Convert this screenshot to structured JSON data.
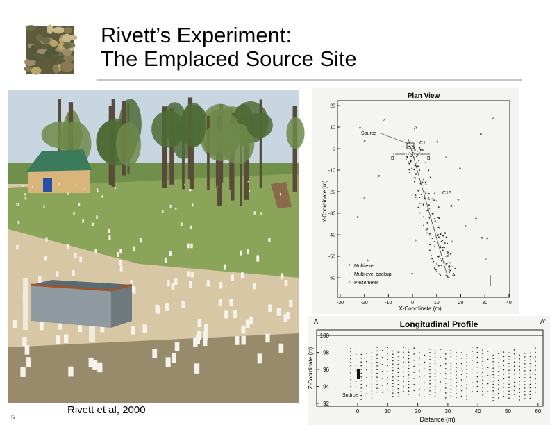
{
  "header": {
    "title_lines": [
      "Rivett’s Experiment:",
      "The Emplaced Source Site"
    ]
  },
  "photo": {
    "caption": "Rivett et al, 2000"
  },
  "page_number": "5",
  "plan_view": {
    "title": "Plan View",
    "x_label": "X-Coordinate (m)",
    "y_label": "Y-Coordinate (m)",
    "x_ticks": [
      "-30",
      "-20",
      "-10",
      "0",
      "10",
      "20",
      "30",
      "40"
    ],
    "y_ticks": [
      "20",
      "10",
      "0",
      "-10",
      "-20",
      "-30",
      "-40",
      "-50",
      "-60"
    ],
    "labels": {
      "source": "Source",
      "a_top": "A",
      "c1": "C1",
      "b_left": "B",
      "b_right": "B'",
      "c16": "C16",
      "two": "2",
      "a_bottom": "A'"
    },
    "legend": [
      "Multilevel",
      "Multilevel backup",
      "Piezometer"
    ]
  },
  "profile": {
    "title": "Longitudinal Profile",
    "left_end": "A",
    "right_end": "A'",
    "y_label": "Z-Coordinate (m)",
    "x_label": "Distance (m)",
    "source_label": "Source",
    "x_ticks": [
      "0",
      "10",
      "20",
      "30",
      "40",
      "50",
      "60"
    ],
    "y_ticks": [
      "100",
      "98",
      "96",
      "94",
      "92"
    ]
  }
}
